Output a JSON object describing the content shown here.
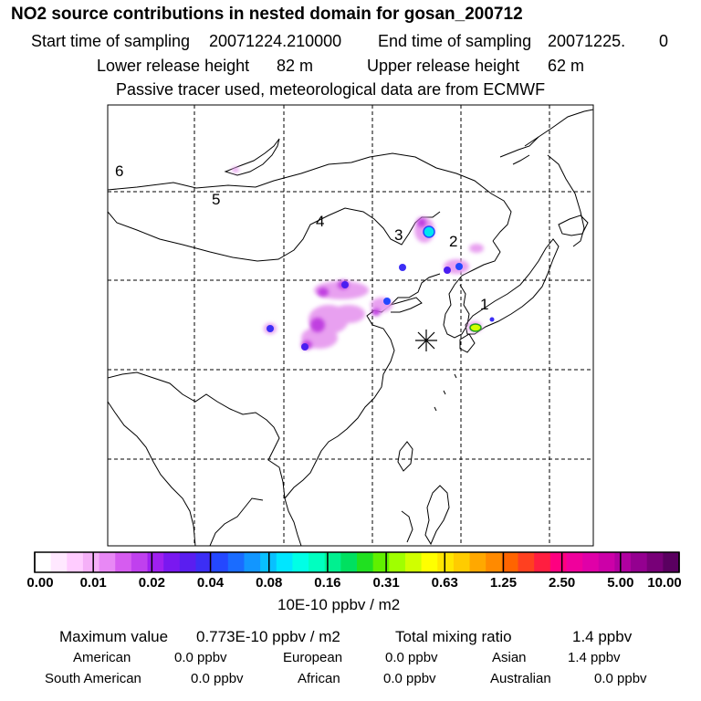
{
  "header": {
    "title": "NO2 source contributions in nested domain for gosan_200712",
    "start_label": "Start time of sampling",
    "start_value": "20071224.210000",
    "end_label": "End time of sampling",
    "end_value": "20071225.",
    "end_suffix": "0",
    "lower_label": "Lower release height",
    "lower_value": "82 m",
    "upper_label": "Upper release height",
    "upper_value": "62 m",
    "note": "Passive tracer used, meteorological data are from ECMWF"
  },
  "map": {
    "region_labels": [
      "1",
      "2",
      "3",
      "4",
      "5",
      "6"
    ],
    "release_marker": "release-site-asterisk"
  },
  "colorbar": {
    "ticks": [
      "0.00",
      "0.01",
      "0.02",
      "0.04",
      "0.08",
      "0.16",
      "0.31",
      "0.63",
      "1.25",
      "2.50",
      "5.00",
      "10.00"
    ],
    "colors": [
      "#ffffff",
      "#ffe8ff",
      "#ffccff",
      "#f5b0f8",
      "#e888f5",
      "#d65cf0",
      "#c040ee",
      "#a020f0",
      "#7a18f0",
      "#5a1ef0",
      "#3c2ef5",
      "#2448ff",
      "#1a6cff",
      "#1296ff",
      "#08c0ff",
      "#00e6ff",
      "#00ffe6",
      "#00ffc0",
      "#00f090",
      "#00e060",
      "#20e020",
      "#60f000",
      "#a0ff00",
      "#d0ff00",
      "#ffff00",
      "#ffe600",
      "#ffcc00",
      "#ffa800",
      "#ff8a00",
      "#ff6400",
      "#ff4020",
      "#ff1e40",
      "#ff0080",
      "#f0009c",
      "#e000a8",
      "#cc00a8",
      "#b000a0",
      "#940090",
      "#780078",
      "#5a0060"
    ],
    "unit": "10E-10 ppbv / m2"
  },
  "stats": {
    "max_label": "Maximum value",
    "max_value": "0.773E-10 ppbv / m2",
    "total_label": "Total mixing ratio",
    "total_value": "1.4 ppbv",
    "regions": [
      {
        "name": "American",
        "value": "0.0 ppbv"
      },
      {
        "name": "European",
        "value": "0.0 ppbv"
      },
      {
        "name": "Asian",
        "value": "1.4 ppbv"
      },
      {
        "name": "South American",
        "value": "0.0 ppbv"
      },
      {
        "name": "African",
        "value": "0.0 ppbv"
      },
      {
        "name": "Australian",
        "value": "0.0 ppbv"
      }
    ]
  }
}
